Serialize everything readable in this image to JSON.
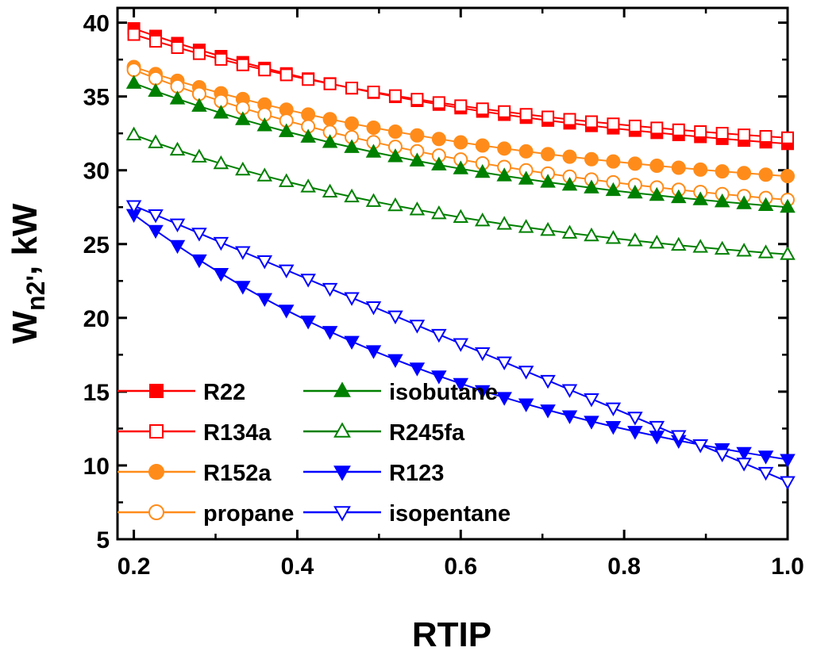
{
  "chart_data": {
    "type": "line",
    "title": "",
    "xlabel": "RTIP",
    "ylabel": {
      "main": "W",
      "sub": "n2'",
      "unit": ", kW"
    },
    "xlim": [
      0.18,
      1.0
    ],
    "ylim": [
      5,
      41
    ],
    "xticks": [
      0.2,
      0.4,
      0.6,
      0.8,
      1.0
    ],
    "xtick_labels": [
      "0.2",
      "0.4",
      "0.6",
      "0.8",
      "1.0"
    ],
    "yticks": [
      5,
      10,
      15,
      20,
      25,
      30,
      35,
      40
    ],
    "ytick_labels": [
      "5",
      "10",
      "15",
      "20",
      "25",
      "30",
      "35",
      "40"
    ],
    "grid": false,
    "legend_position": "bottom-left",
    "x_range": [
      0.2,
      1.0
    ],
    "n_points": 31,
    "series": [
      {
        "name": "R22",
        "color": "#ff0000",
        "marker": "square",
        "filled": true,
        "start": 39.6,
        "end": 31.8,
        "shape": "convex"
      },
      {
        "name": "R134a",
        "color": "#ff0000",
        "marker": "square",
        "filled": false,
        "start": 39.2,
        "end": 32.2,
        "shape": "convex"
      },
      {
        "name": "R152a",
        "color": "#ff8c1a",
        "marker": "circle",
        "filled": true,
        "start": 37.0,
        "end": 29.6,
        "shape": "convex"
      },
      {
        "name": "propane",
        "color": "#ff8c1a",
        "marker": "circle",
        "filled": false,
        "start": 36.8,
        "end": 28.0,
        "shape": "convex"
      },
      {
        "name": "isobutane",
        "color": "#008000",
        "marker": "triangle-up",
        "filled": true,
        "start": 35.9,
        "end": 27.5,
        "shape": "convex"
      },
      {
        "name": "R245fa",
        "color": "#008000",
        "marker": "triangle-up",
        "filled": false,
        "start": 32.4,
        "end": 24.3,
        "shape": "convex"
      },
      {
        "name": "R123",
        "color": "#0000ff",
        "marker": "triangle-down",
        "filled": true,
        "start": 27.0,
        "end": 10.4,
        "shape": "convex"
      },
      {
        "name": "isopentane",
        "color": "#0000ff",
        "marker": "triangle-down",
        "filled": false,
        "start": 27.6,
        "end": 8.9,
        "shape": "linear"
      }
    ]
  }
}
